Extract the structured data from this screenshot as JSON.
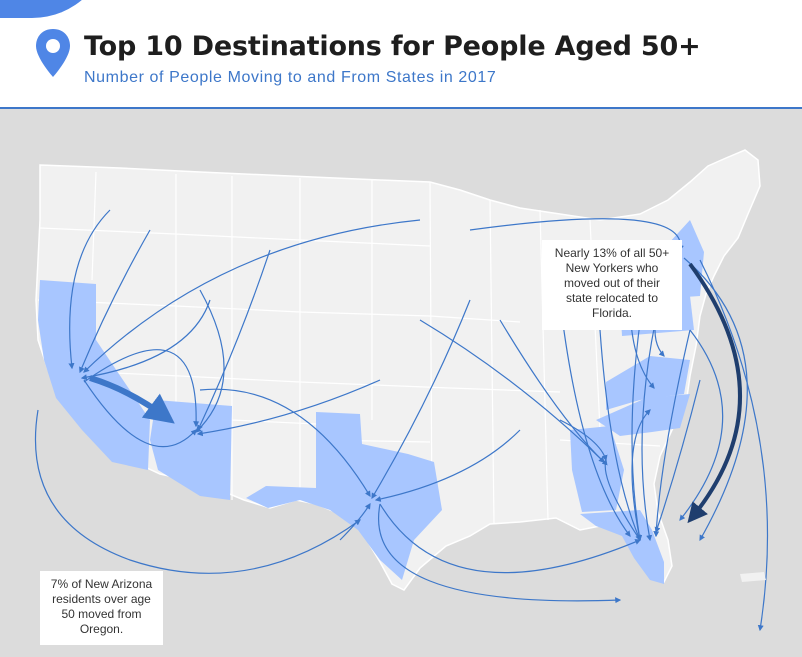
{
  "header": {
    "title": "Top 10 Destinations for People Aged 50+",
    "subtitle": "Number of People Moving to and From States in 2017",
    "accent_color": "#3d77c9",
    "icon": "location-pin-icon"
  },
  "map": {
    "background_color": "#dcdcdc",
    "state_color": "#f1f1f1",
    "highlight_color": "#a8c6ff",
    "arrow_color": "#3d77c9",
    "dark_arrow_color": "#1f3e6e",
    "highlighted_states": [
      "California",
      "Arizona",
      "Texas",
      "Georgia",
      "Florida",
      "North Carolina",
      "Virginia",
      "New York",
      "Pennsylvania"
    ]
  },
  "callouts": {
    "new_york": {
      "lines": [
        "Nearly 13% of all 50+",
        "New Yorkers who",
        "moved out of their",
        "state relocated to",
        "Florida."
      ]
    },
    "arizona": {
      "lines": [
        "7% of New Arizona",
        "residents over age",
        "50 moved from",
        "Oregon."
      ]
    }
  }
}
